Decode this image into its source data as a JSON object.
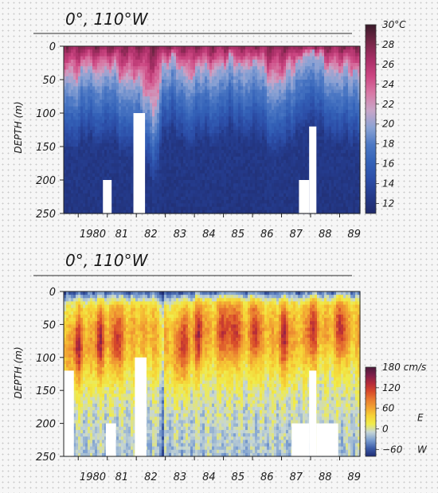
{
  "chart_data": [
    {
      "type": "heatmap",
      "title": "0°, 110°W",
      "ylabel": "DEPTH (m)",
      "x_ticks": [
        "1980",
        "81",
        "82",
        "83",
        "84",
        "85",
        "86",
        "87",
        "88",
        "89"
      ],
      "xlim": [
        1979.5,
        1989.7
      ],
      "y_ticks": [
        0,
        50,
        100,
        150,
        200,
        250
      ],
      "ylim": [
        0,
        250
      ],
      "y_reversed": true,
      "colorbar": {
        "ticks": [
          12,
          14,
          16,
          18,
          20,
          22,
          24,
          26,
          28
        ],
        "top_label": "30°C",
        "range": [
          11,
          30
        ],
        "colors": [
          "#202a6a",
          "#243a8a",
          "#2c4ea8",
          "#3462b8",
          "#4c78c4",
          "#8aa2d4",
          "#c8a6c8",
          "#d87aa6",
          "#cc4682",
          "#a82e66",
          "#742646",
          "#3a1a2a"
        ]
      },
      "thermocline_depth_m": [
        {
          "t": 1979.5,
          "d": 45
        },
        {
          "t": 1979.9,
          "d": 50
        },
        {
          "t": 1980.3,
          "d": 30
        },
        {
          "t": 1980.7,
          "d": 45
        },
        {
          "t": 1981.1,
          "d": 30
        },
        {
          "t": 1981.6,
          "d": 55
        },
        {
          "t": 1982.0,
          "d": 50
        },
        {
          "t": 1982.3,
          "d": 70
        },
        {
          "t": 1982.6,
          "d": 100
        },
        {
          "t": 1982.75,
          "d": 80
        },
        {
          "t": 1982.9,
          "d": 30
        },
        {
          "t": 1983.3,
          "d": 20
        },
        {
          "t": 1983.8,
          "d": 50
        },
        {
          "t": 1984.2,
          "d": 30
        },
        {
          "t": 1984.7,
          "d": 40
        },
        {
          "t": 1985.2,
          "d": 20
        },
        {
          "t": 1985.7,
          "d": 35
        },
        {
          "t": 1986.2,
          "d": 25
        },
        {
          "t": 1986.7,
          "d": 60
        },
        {
          "t": 1987.0,
          "d": 50
        },
        {
          "t": 1987.4,
          "d": 35
        },
        {
          "t": 1987.8,
          "d": 15
        },
        {
          "t": 1988.2,
          "d": 10
        },
        {
          "t": 1988.7,
          "d": 40
        },
        {
          "t": 1989.2,
          "d": 35
        },
        {
          "t": 1989.7,
          "d": 45
        }
      ],
      "missing_data": [
        {
          "t0": 1980.85,
          "t1": 1981.15,
          "d0": 200,
          "d1": 250
        },
        {
          "t0": 1981.9,
          "t1": 1982.3,
          "d0": 100,
          "d1": 250
        },
        {
          "t0": 1987.6,
          "t1": 1987.95,
          "d0": 200,
          "d1": 250
        },
        {
          "t0": 1987.95,
          "t1": 1988.2,
          "d0": 120,
          "d1": 250
        }
      ]
    },
    {
      "type": "heatmap",
      "title": "0°, 110°W",
      "ylabel": "DEPTH (m)",
      "x_ticks": [
        "1980",
        "81",
        "82",
        "83",
        "84",
        "85",
        "86",
        "87",
        "88",
        "89"
      ],
      "xlim": [
        1979.5,
        1989.7
      ],
      "y_ticks": [
        0,
        50,
        100,
        150,
        200,
        250
      ],
      "ylim": [
        0,
        250
      ],
      "y_reversed": true,
      "colorbar": {
        "ticks": [
          -60,
          0,
          60,
          120
        ],
        "top_label": "180 cm/s",
        "side_labels": {
          "east": "E",
          "west": "W"
        },
        "range": [
          -80,
          180
        ],
        "colors": [
          "#1e2c74",
          "#3c5ca8",
          "#7b9ed0",
          "#c6d6d6",
          "#f0ec4a",
          "#f6d236",
          "#f2a432",
          "#e97c30",
          "#d84a2a",
          "#b42a3a",
          "#7e1e4a",
          "#4a1a3a"
        ]
      },
      "undercurrent_core_depth_m": [
        {
          "t": 1979.5,
          "d": 90
        },
        {
          "t": 1980.5,
          "d": 75
        },
        {
          "t": 1981.5,
          "d": 70
        },
        {
          "t": 1982.2,
          "d": 60
        },
        {
          "t": 1983.4,
          "d": 85
        },
        {
          "t": 1984.3,
          "d": 60
        },
        {
          "t": 1985.0,
          "d": 60
        },
        {
          "t": 1986.0,
          "d": 60
        },
        {
          "t": 1987.0,
          "d": 70
        },
        {
          "t": 1988.0,
          "d": 60
        },
        {
          "t": 1989.0,
          "d": 55
        },
        {
          "t": 1989.7,
          "d": 60
        }
      ],
      "undercurrent_maxima": [
        {
          "t": 1980.0,
          "d": 70
        },
        {
          "t": 1980.75,
          "d": 70
        },
        {
          "t": 1981.35,
          "d": 80
        },
        {
          "t": 1983.6,
          "d": 75
        },
        {
          "t": 1984.15,
          "d": 60
        },
        {
          "t": 1985.0,
          "d": 60
        },
        {
          "t": 1985.4,
          "d": 70
        },
        {
          "t": 1986.1,
          "d": 55
        },
        {
          "t": 1987.1,
          "d": 65
        },
        {
          "t": 1988.05,
          "d": 60
        },
        {
          "t": 1989.05,
          "d": 55
        }
      ],
      "missing_data": [
        {
          "t0": 1979.5,
          "t1": 1979.85,
          "d0": 120,
          "d1": 250
        },
        {
          "t0": 1980.95,
          "t1": 1981.3,
          "d0": 200,
          "d1": 250
        },
        {
          "t0": 1981.95,
          "t1": 1982.35,
          "d0": 100,
          "d1": 250
        },
        {
          "t0": 1987.35,
          "t1": 1987.95,
          "d0": 200,
          "d1": 250
        },
        {
          "t0": 1987.95,
          "t1": 1988.2,
          "d0": 120,
          "d1": 250
        },
        {
          "t0": 1988.2,
          "t1": 1988.95,
          "d0": 200,
          "d1": 250
        }
      ]
    }
  ]
}
